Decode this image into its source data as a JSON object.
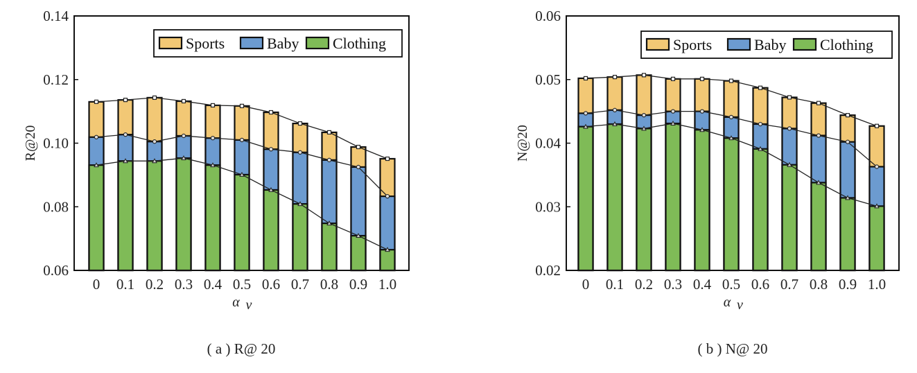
{
  "colors": {
    "Sports": "#f2c875",
    "Baby": "#6c9bd0",
    "Clothing": "#7fbb57"
  },
  "chart_data": [
    {
      "type": "bar",
      "id": "a",
      "caption": "( a ) R@ 20",
      "ylabel": "R@20",
      "xlabel": "α",
      "xlabel_sub": "v",
      "categories": [
        "0",
        "0.1",
        "0.2",
        "0.3",
        "0.4",
        "0.5",
        "0.6",
        "0.7",
        "0.8",
        "0.9",
        "1.0"
      ],
      "ylim": [
        0.06,
        0.14
      ],
      "yticks": [
        "0.06",
        "0.08",
        "0.10",
        "0.12",
        "0.14"
      ],
      "legend_placement": "top-right",
      "series": [
        {
          "name": "Sports",
          "values": [
            0.113,
            0.1136,
            0.1143,
            0.1132,
            0.1119,
            0.1117,
            0.1097,
            0.1062,
            0.1034,
            0.0988,
            0.0951
          ]
        },
        {
          "name": "Baby",
          "values": [
            0.1019,
            0.1027,
            0.1005,
            0.1023,
            0.1016,
            0.101,
            0.0981,
            0.0971,
            0.0947,
            0.0925,
            0.0833
          ]
        },
        {
          "name": "Clothing",
          "values": [
            0.0931,
            0.0944,
            0.0944,
            0.0953,
            0.0931,
            0.0901,
            0.0853,
            0.0809,
            0.0748,
            0.0709,
            0.0665
          ]
        }
      ]
    },
    {
      "type": "bar",
      "id": "b",
      "caption": "( b ) N@ 20",
      "ylabel": "N@20",
      "xlabel": "α",
      "xlabel_sub": "v",
      "categories": [
        "0",
        "0.1",
        "0.2",
        "0.3",
        "0.4",
        "0.5",
        "0.6",
        "0.7",
        "0.8",
        "0.9",
        "1.0"
      ],
      "ylim": [
        0.02,
        0.06
      ],
      "yticks": [
        "0.02",
        "0.03",
        "0.04",
        "0.05",
        "0.06"
      ],
      "legend_placement": "top-right",
      "series": [
        {
          "name": "Sports",
          "values": [
            0.0502,
            0.0504,
            0.0507,
            0.0501,
            0.0501,
            0.0498,
            0.0487,
            0.0472,
            0.0463,
            0.0444,
            0.0427
          ]
        },
        {
          "name": "Baby",
          "values": [
            0.0447,
            0.0452,
            0.0444,
            0.045,
            0.045,
            0.0441,
            0.043,
            0.0423,
            0.0412,
            0.0402,
            0.0363
          ]
        },
        {
          "name": "Clothing",
          "values": [
            0.0426,
            0.043,
            0.0423,
            0.0431,
            0.0421,
            0.0408,
            0.0391,
            0.0366,
            0.0338,
            0.0314,
            0.0301
          ]
        }
      ]
    }
  ]
}
